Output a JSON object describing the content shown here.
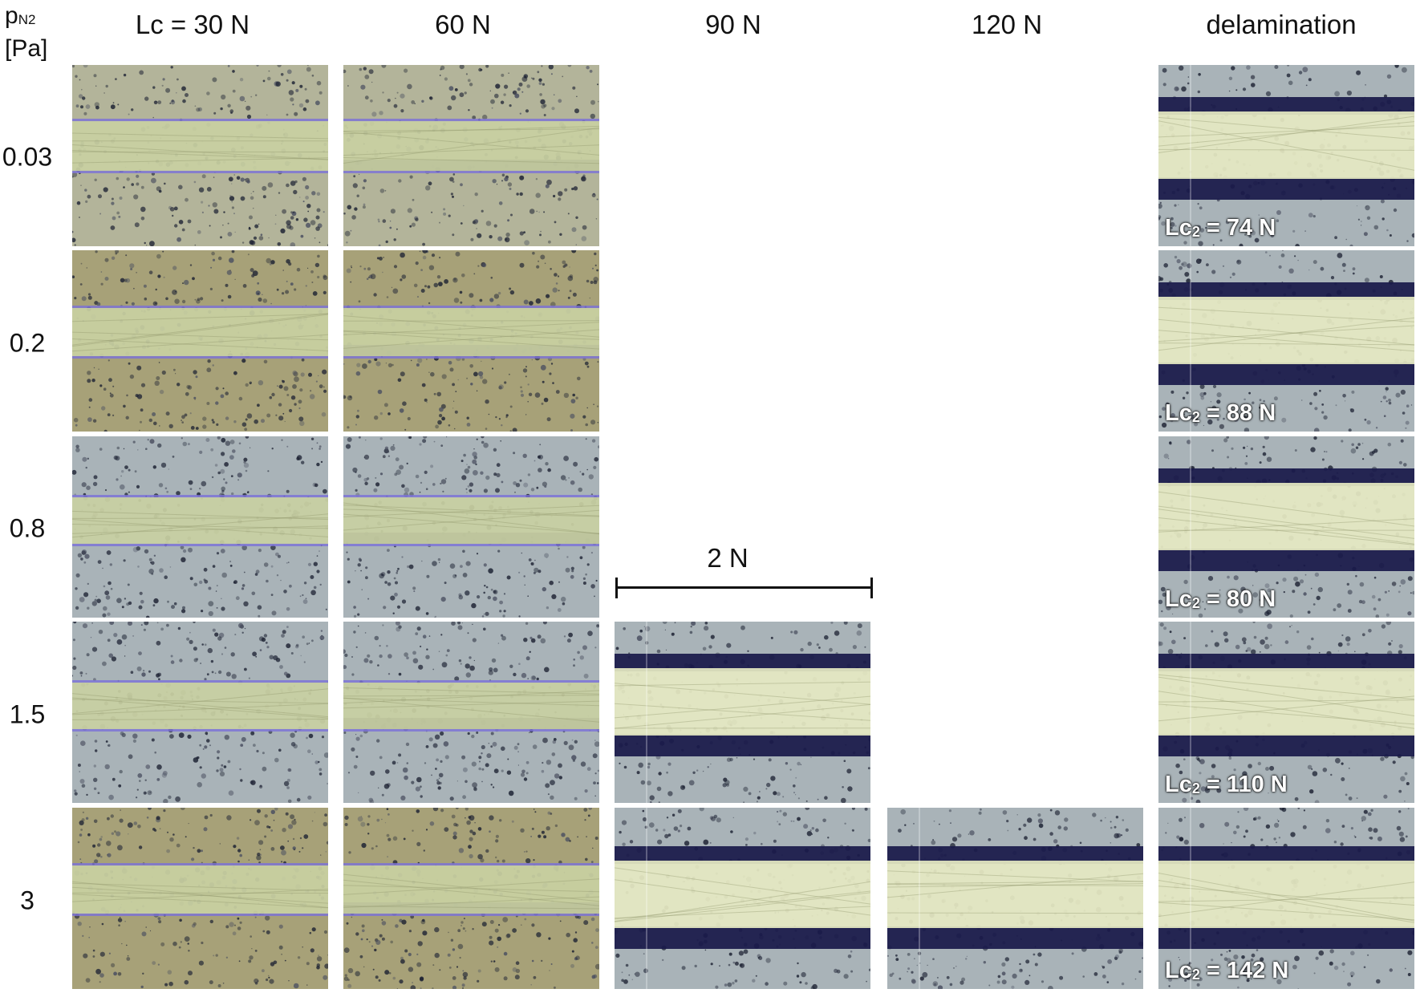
{
  "axis_title": {
    "symbol": "p",
    "subscript": "N2",
    "unit": "[Pa]"
  },
  "columns": [
    "Lc = 30 N",
    "60 N",
    "90 N",
    "120 N",
    "delamination"
  ],
  "rows": [
    "0.03",
    "0.2",
    "0.8",
    "1.5",
    "3"
  ],
  "scale_bar": {
    "label": "2 N"
  },
  "delamination_labels": [
    {
      "prefix": "Lc",
      "subscript": "2",
      "value": "= 74 N"
    },
    {
      "prefix": "Lc",
      "subscript": "2",
      "value": "= 88 N"
    },
    {
      "prefix": "Lc",
      "subscript": "2",
      "value": "= 80 N"
    },
    {
      "prefix": "Lc",
      "subscript": "2",
      "value": "= 110 N"
    },
    {
      "prefix": "Lc",
      "subscript": "2",
      "value": "= 142 N"
    }
  ],
  "tile_grid": [
    [
      true,
      true,
      false,
      false,
      true
    ],
    [
      true,
      true,
      false,
      false,
      true
    ],
    [
      true,
      true,
      false,
      false,
      true
    ],
    [
      true,
      true,
      true,
      false,
      true
    ],
    [
      true,
      true,
      true,
      true,
      true
    ]
  ],
  "tile_tones": {
    "blue_grey": "#a9b3b8",
    "olive": "#a7a178",
    "track_light": "#e6e9c2",
    "track_green": "#c9d0a2",
    "groove_dark": "#1a1a4a",
    "edge_violet": "#7a70d8"
  }
}
